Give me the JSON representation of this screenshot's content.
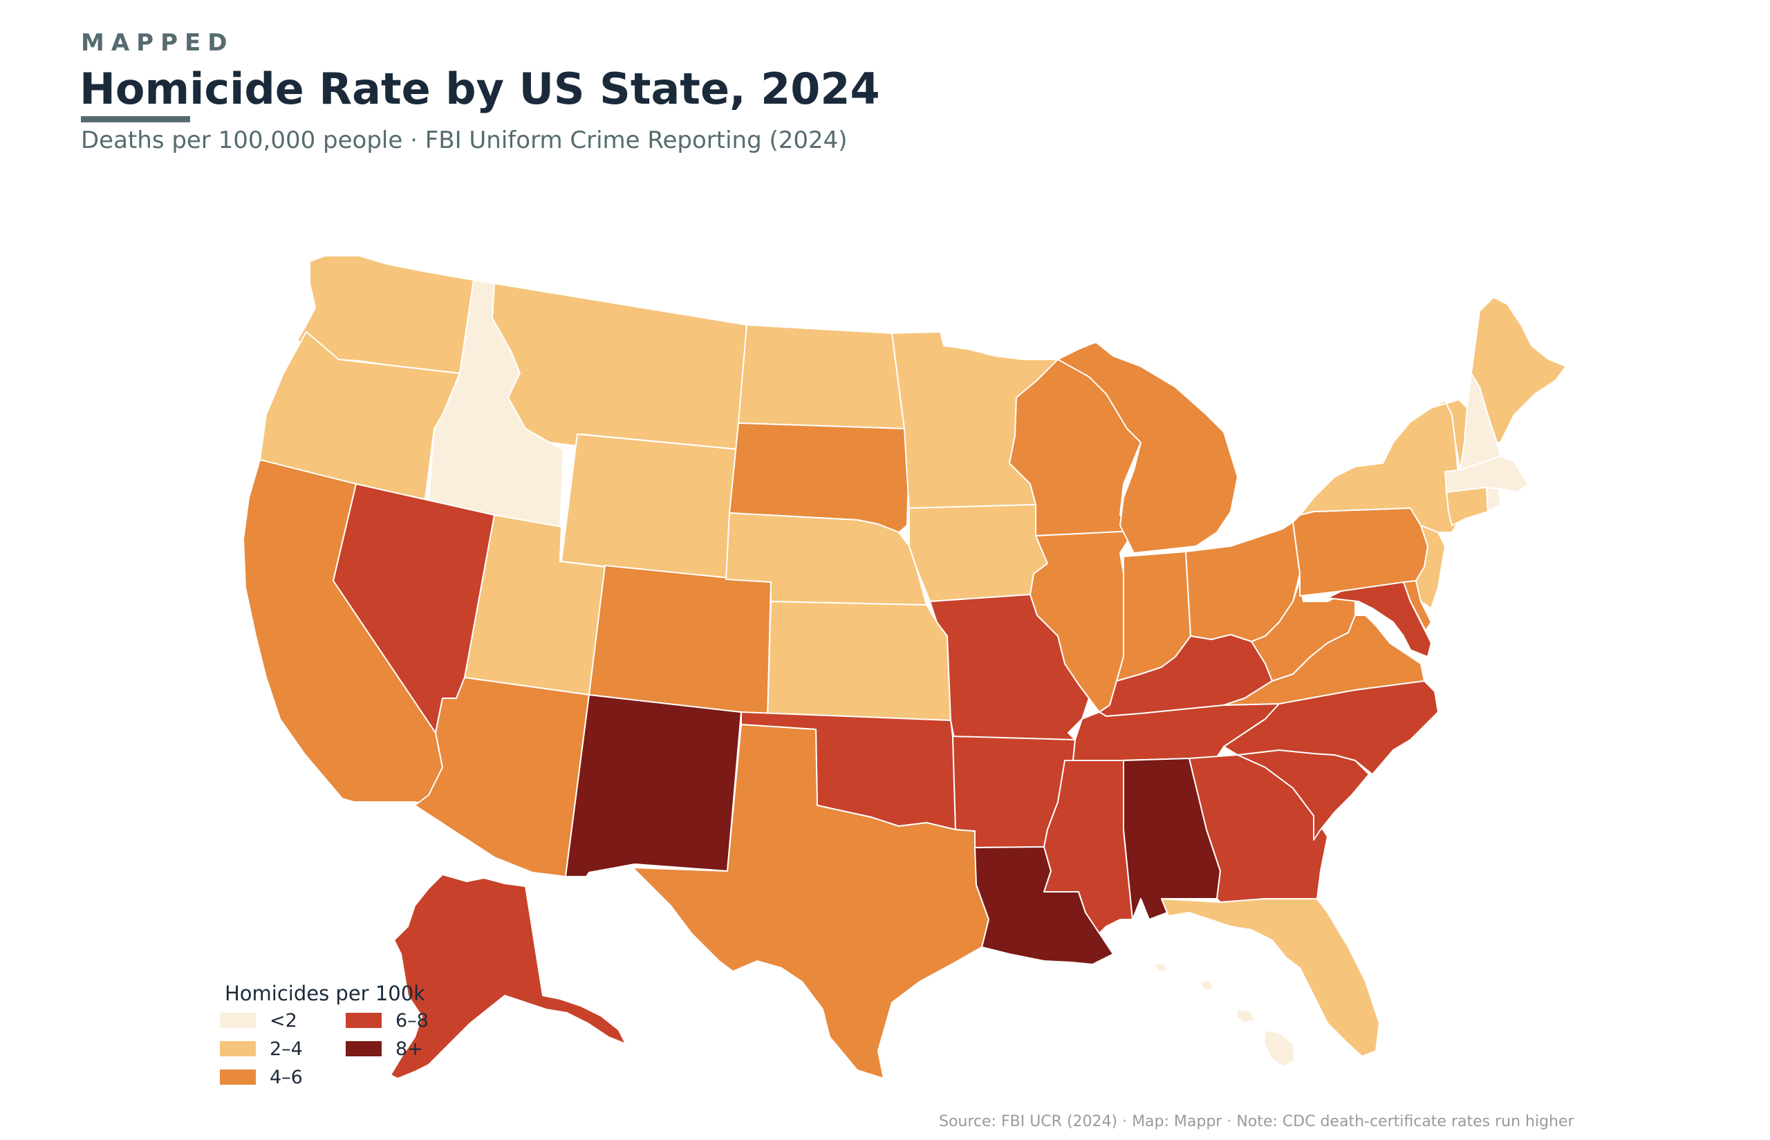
{
  "header": {
    "eyebrow": "MAPPED",
    "title": "Homicide Rate by US State, 2024",
    "subtitle": "Deaths per 100,000 people · FBI Uniform Crime Reporting (2024)"
  },
  "legend": {
    "title": "Homicides per 100k",
    "bins": [
      {
        "label": "<2",
        "color": "#faeedd"
      },
      {
        "label": "2–4",
        "color": "#f6c47a"
      },
      {
        "label": "4–6",
        "color": "#e8893c"
      },
      {
        "label": "6–8",
        "color": "#c8412a"
      },
      {
        "label": "8+",
        "color": "#7b1a16"
      }
    ]
  },
  "map_data": {
    "type": "choropleth",
    "region": "United States",
    "states": {
      "ID": "<2",
      "NH": "<2",
      "MA": "<2",
      "RI": "<2",
      "HI": "<2",
      "WA": "2–4",
      "OR": "2–4",
      "MT": "2–4",
      "WY": "2–4",
      "UT": "2–4",
      "ND": "2–4",
      "MN": "2–4",
      "IA": "2–4",
      "NE": "2–4",
      "KS": "2–4",
      "NY": "2–4",
      "VT": "2–4",
      "ME": "2–4",
      "CT": "2–4",
      "NJ": "2–4",
      "FL": "2–4",
      "CA": "4–6",
      "AZ": "4–6",
      "CO": "4–6",
      "SD": "4–6",
      "TX": "4–6",
      "WI": "4–6",
      "MI": "4–6",
      "IL": "4–6",
      "IN": "4–6",
      "OH": "4–6",
      "PA": "4–6",
      "WV": "4–6",
      "VA": "4–6",
      "DE": "4–6",
      "NV": "6–8",
      "OK": "6–8",
      "MO": "6–8",
      "AR": "6–8",
      "KY": "6–8",
      "TN": "6–8",
      "MS": "6–8",
      "GA": "6–8",
      "SC": "6–8",
      "NC": "6–8",
      "MD": "6–8",
      "AK": "6–8",
      "NM": "8+",
      "LA": "8+",
      "AL": "8+"
    }
  },
  "footer": {
    "source": "Source: FBI UCR (2024) · Map: Mappr · Note: CDC death-certificate rates run higher"
  }
}
